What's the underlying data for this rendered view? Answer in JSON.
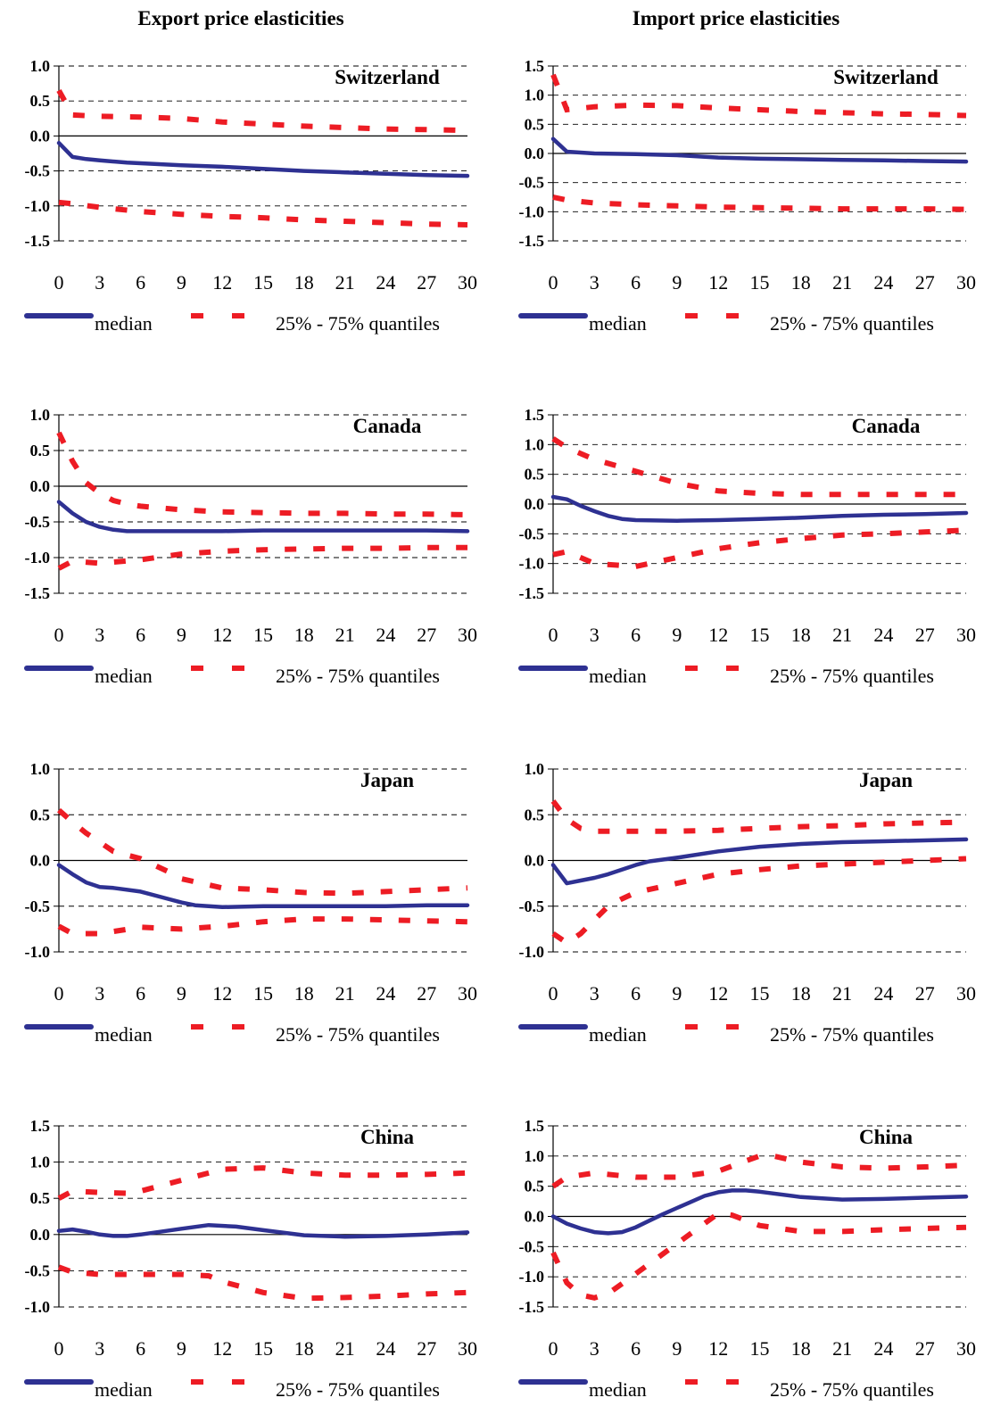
{
  "headers": {
    "left": "Export price elasticities",
    "right": "Import price elasticities"
  },
  "colors": {
    "median": "#2e3192",
    "quantile": "#ed1c24",
    "grid": "#000000"
  },
  "legend": {
    "median": "median",
    "quantiles": "25% - 75% quantiles"
  },
  "chart_data": [
    {
      "type": "line",
      "panel": "export",
      "title": "Switzerland",
      "ylim": [
        -1.5,
        1.0
      ],
      "yticks": [
        "1.0",
        "0.5",
        "0.0",
        "-0.5",
        "-1.0",
        "-1.5"
      ],
      "xticks": [
        0,
        3,
        6,
        9,
        12,
        15,
        18,
        21,
        24,
        27,
        30
      ],
      "series": [
        {
          "role": "median",
          "x": [
            0,
            1,
            2,
            3,
            5,
            7,
            9,
            12,
            15,
            18,
            21,
            24,
            27,
            30
          ],
          "y": [
            -0.1,
            -0.3,
            -0.33,
            -0.35,
            -0.38,
            -0.4,
            -0.42,
            -0.44,
            -0.47,
            -0.5,
            -0.52,
            -0.54,
            -0.56,
            -0.57
          ]
        },
        {
          "role": "q75",
          "x": [
            0,
            1,
            3,
            6,
            9,
            12,
            15,
            18,
            21,
            24,
            27,
            30
          ],
          "y": [
            0.65,
            0.3,
            0.28,
            0.27,
            0.25,
            0.2,
            0.17,
            0.14,
            0.12,
            0.1,
            0.09,
            0.08
          ]
        },
        {
          "role": "q25",
          "x": [
            0,
            1,
            3,
            6,
            9,
            12,
            15,
            18,
            21,
            24,
            27,
            30
          ],
          "y": [
            -0.95,
            -0.97,
            -1.02,
            -1.08,
            -1.12,
            -1.15,
            -1.17,
            -1.2,
            -1.22,
            -1.24,
            -1.26,
            -1.27
          ]
        }
      ]
    },
    {
      "type": "line",
      "panel": "import",
      "title": "Switzerland",
      "ylim": [
        -1.5,
        1.5
      ],
      "yticks": [
        "1.5",
        "1.0",
        "0.5",
        "0.0",
        "-0.5",
        "-1.0",
        "-1.5"
      ],
      "xticks": [
        0,
        3,
        6,
        9,
        12,
        15,
        18,
        21,
        24,
        27,
        30
      ],
      "series": [
        {
          "role": "median",
          "x": [
            0,
            1,
            3,
            6,
            9,
            12,
            15,
            18,
            21,
            24,
            27,
            30
          ],
          "y": [
            0.25,
            0.03,
            0.0,
            -0.01,
            -0.03,
            -0.07,
            -0.09,
            -0.1,
            -0.11,
            -0.12,
            -0.13,
            -0.14
          ]
        },
        {
          "role": "q75",
          "x": [
            0,
            1,
            3,
            6,
            9,
            12,
            15,
            18,
            21,
            24,
            27,
            30
          ],
          "y": [
            1.35,
            0.75,
            0.8,
            0.83,
            0.82,
            0.78,
            0.75,
            0.72,
            0.7,
            0.68,
            0.67,
            0.65
          ]
        },
        {
          "role": "q25",
          "x": [
            0,
            1,
            3,
            6,
            9,
            12,
            15,
            18,
            21,
            24,
            27,
            30
          ],
          "y": [
            -0.75,
            -0.8,
            -0.85,
            -0.88,
            -0.9,
            -0.92,
            -0.93,
            -0.94,
            -0.95,
            -0.95,
            -0.95,
            -0.96
          ]
        }
      ]
    },
    {
      "type": "line",
      "panel": "export",
      "title": "Canada",
      "ylim": [
        -1.5,
        1.0
      ],
      "yticks": [
        "1.0",
        "0.5",
        "0.0",
        "-0.5",
        "-1.0",
        "-1.5"
      ],
      "xticks": [
        0,
        3,
        6,
        9,
        12,
        15,
        18,
        21,
        24,
        27,
        30
      ],
      "series": [
        {
          "role": "median",
          "x": [
            0,
            1,
            2,
            3,
            4,
            5,
            6,
            9,
            12,
            15,
            18,
            21,
            24,
            27,
            30
          ],
          "y": [
            -0.22,
            -0.38,
            -0.5,
            -0.57,
            -0.61,
            -0.63,
            -0.63,
            -0.63,
            -0.63,
            -0.62,
            -0.62,
            -0.62,
            -0.62,
            -0.62,
            -0.63
          ]
        },
        {
          "role": "q75",
          "x": [
            0,
            1,
            2,
            3,
            4,
            5,
            6,
            9,
            12,
            15,
            18,
            21,
            24,
            27,
            30
          ],
          "y": [
            0.75,
            0.35,
            0.05,
            -0.1,
            -0.2,
            -0.25,
            -0.28,
            -0.33,
            -0.36,
            -0.37,
            -0.38,
            -0.38,
            -0.39,
            -0.39,
            -0.4
          ]
        },
        {
          "role": "q25",
          "x": [
            0,
            1,
            3,
            6,
            9,
            12,
            15,
            18,
            21,
            24,
            27,
            30
          ],
          "y": [
            -1.15,
            -1.05,
            -1.08,
            -1.03,
            -0.95,
            -0.91,
            -0.89,
            -0.88,
            -0.87,
            -0.87,
            -0.86,
            -0.86
          ]
        }
      ]
    },
    {
      "type": "line",
      "panel": "import",
      "title": "Canada",
      "ylim": [
        -1.5,
        1.5
      ],
      "yticks": [
        "1.5",
        "1.0",
        "0.5",
        "0.0",
        "-0.5",
        "-1.0",
        "-1.5"
      ],
      "xticks": [
        0,
        3,
        6,
        9,
        12,
        15,
        18,
        21,
        24,
        27,
        30
      ],
      "series": [
        {
          "role": "median",
          "x": [
            0,
            1,
            2,
            3,
            4,
            5,
            6,
            9,
            12,
            15,
            18,
            21,
            24,
            27,
            30
          ],
          "y": [
            0.12,
            0.08,
            -0.03,
            -0.12,
            -0.2,
            -0.25,
            -0.27,
            -0.28,
            -0.27,
            -0.25,
            -0.23,
            -0.2,
            -0.18,
            -0.17,
            -0.15
          ]
        },
        {
          "role": "q75",
          "x": [
            0,
            1,
            3,
            6,
            9,
            12,
            15,
            18,
            21,
            24,
            27,
            30
          ],
          "y": [
            1.1,
            0.95,
            0.75,
            0.55,
            0.35,
            0.22,
            0.18,
            0.16,
            0.16,
            0.16,
            0.16,
            0.16
          ]
        },
        {
          "role": "q25",
          "x": [
            0,
            1,
            3,
            6,
            9,
            12,
            15,
            18,
            21,
            24,
            27,
            30
          ],
          "y": [
            -0.85,
            -0.8,
            -1.0,
            -1.05,
            -0.9,
            -0.75,
            -0.65,
            -0.58,
            -0.52,
            -0.5,
            -0.47,
            -0.44
          ]
        }
      ]
    },
    {
      "type": "line",
      "panel": "export",
      "title": "Japan",
      "ylim": [
        -1.0,
        1.0
      ],
      "yticks": [
        "1.0",
        "0.5",
        "0.0",
        "-0.5",
        "-1.0"
      ],
      "xticks": [
        0,
        3,
        6,
        9,
        12,
        15,
        18,
        21,
        24,
        27,
        30
      ],
      "series": [
        {
          "role": "median",
          "x": [
            0,
            1,
            2,
            3,
            4,
            6,
            8,
            9,
            10,
            12,
            15,
            18,
            21,
            24,
            27,
            30
          ],
          "y": [
            -0.05,
            -0.15,
            -0.24,
            -0.29,
            -0.3,
            -0.34,
            -0.42,
            -0.46,
            -0.49,
            -0.51,
            -0.5,
            -0.5,
            -0.5,
            -0.5,
            -0.49,
            -0.49
          ]
        },
        {
          "role": "q75",
          "x": [
            0,
            1,
            2,
            3,
            4,
            6,
            8,
            9,
            12,
            15,
            18,
            21,
            24,
            27,
            30
          ],
          "y": [
            0.55,
            0.42,
            0.3,
            0.2,
            0.1,
            0.02,
            -0.12,
            -0.2,
            -0.3,
            -0.32,
            -0.35,
            -0.36,
            -0.34,
            -0.32,
            -0.3
          ]
        },
        {
          "role": "q25",
          "x": [
            0,
            1,
            3,
            6,
            9,
            12,
            15,
            18,
            21,
            24,
            27,
            30
          ],
          "y": [
            -0.72,
            -0.8,
            -0.8,
            -0.73,
            -0.75,
            -0.72,
            -0.67,
            -0.64,
            -0.64,
            -0.65,
            -0.66,
            -0.67
          ]
        }
      ]
    },
    {
      "type": "line",
      "panel": "import",
      "title": "Japan",
      "ylim": [
        -1.0,
        1.0
      ],
      "yticks": [
        "1.0",
        "0.5",
        "0.0",
        "-0.5",
        "-1.0"
      ],
      "xticks": [
        0,
        3,
        6,
        9,
        12,
        15,
        18,
        21,
        24,
        27,
        30
      ],
      "series": [
        {
          "role": "median",
          "x": [
            0,
            1,
            2,
            3,
            4,
            5,
            6,
            7,
            9,
            12,
            15,
            18,
            21,
            24,
            27,
            30
          ],
          "y": [
            -0.05,
            -0.25,
            -0.22,
            -0.19,
            -0.15,
            -0.1,
            -0.05,
            -0.01,
            0.03,
            0.1,
            0.15,
            0.18,
            0.2,
            0.21,
            0.22,
            0.23
          ]
        },
        {
          "role": "q75",
          "x": [
            0,
            1,
            2,
            3,
            6,
            9,
            12,
            15,
            18,
            21,
            24,
            27,
            30
          ],
          "y": [
            0.65,
            0.45,
            0.35,
            0.32,
            0.32,
            0.32,
            0.33,
            0.35,
            0.37,
            0.38,
            0.4,
            0.41,
            0.42
          ]
        },
        {
          "role": "q25",
          "x": [
            0,
            1,
            2,
            3,
            4,
            5,
            6,
            9,
            12,
            15,
            18,
            21,
            24,
            27,
            30
          ],
          "y": [
            -0.8,
            -0.9,
            -0.8,
            -0.65,
            -0.5,
            -0.42,
            -0.35,
            -0.25,
            -0.15,
            -0.1,
            -0.06,
            -0.04,
            -0.02,
            0.0,
            0.02
          ]
        }
      ]
    },
    {
      "type": "line",
      "panel": "export",
      "title": "China",
      "ylim": [
        -1.0,
        1.5
      ],
      "yticks": [
        "1.5",
        "1.0",
        "0.5",
        "0.0",
        "-0.5",
        "-1.0"
      ],
      "xticks": [
        0,
        3,
        6,
        9,
        12,
        15,
        18,
        21,
        24,
        27,
        30
      ],
      "series": [
        {
          "role": "median",
          "x": [
            0,
            1,
            2,
            3,
            4,
            5,
            6,
            9,
            11,
            13,
            15,
            18,
            21,
            24,
            27,
            30
          ],
          "y": [
            0.05,
            0.07,
            0.04,
            0.0,
            -0.02,
            -0.02,
            0.0,
            0.08,
            0.13,
            0.11,
            0.06,
            -0.01,
            -0.03,
            -0.02,
            0.0,
            0.03
          ]
        },
        {
          "role": "q75",
          "x": [
            0,
            1,
            3,
            5,
            6,
            9,
            12,
            15,
            18,
            21,
            24,
            27,
            30
          ],
          "y": [
            0.5,
            0.6,
            0.58,
            0.57,
            0.6,
            0.75,
            0.9,
            0.92,
            0.85,
            0.82,
            0.82,
            0.83,
            0.85
          ]
        },
        {
          "role": "q25",
          "x": [
            0,
            1,
            3,
            6,
            9,
            11,
            12,
            15,
            18,
            21,
            24,
            27,
            30
          ],
          "y": [
            -0.45,
            -0.52,
            -0.55,
            -0.55,
            -0.55,
            -0.57,
            -0.65,
            -0.8,
            -0.88,
            -0.87,
            -0.85,
            -0.82,
            -0.8
          ]
        }
      ]
    },
    {
      "type": "line",
      "panel": "import",
      "title": "China",
      "ylim": [
        -1.5,
        1.5
      ],
      "yticks": [
        "1.5",
        "1.0",
        "0.5",
        "0.0",
        "-0.5",
        "-1.0",
        "-1.5"
      ],
      "xticks": [
        0,
        3,
        6,
        9,
        12,
        15,
        18,
        21,
        24,
        27,
        30
      ],
      "series": [
        {
          "role": "median",
          "x": [
            0,
            1,
            2,
            3,
            4,
            5,
            6,
            7,
            8,
            9,
            10,
            11,
            12,
            13,
            14,
            15,
            18,
            21,
            24,
            27,
            30
          ],
          "y": [
            0.0,
            -0.12,
            -0.2,
            -0.26,
            -0.28,
            -0.26,
            -0.18,
            -0.07,
            0.04,
            0.14,
            0.24,
            0.34,
            0.4,
            0.43,
            0.43,
            0.41,
            0.32,
            0.28,
            0.29,
            0.31,
            0.33
          ]
        },
        {
          "role": "q75",
          "x": [
            0,
            1,
            3,
            6,
            9,
            12,
            14,
            15,
            16,
            18,
            21,
            24,
            27,
            30
          ],
          "y": [
            0.5,
            0.65,
            0.72,
            0.65,
            0.65,
            0.75,
            0.92,
            1.0,
            1.0,
            0.9,
            0.82,
            0.8,
            0.82,
            0.85
          ]
        },
        {
          "role": "q25",
          "x": [
            0,
            1,
            2,
            3,
            4,
            6,
            9,
            12,
            13,
            15,
            18,
            21,
            24,
            27,
            30
          ],
          "y": [
            -0.6,
            -1.1,
            -1.3,
            -1.35,
            -1.28,
            -0.95,
            -0.45,
            0.05,
            0.02,
            -0.15,
            -0.25,
            -0.25,
            -0.22,
            -0.2,
            -0.18
          ]
        }
      ]
    }
  ]
}
